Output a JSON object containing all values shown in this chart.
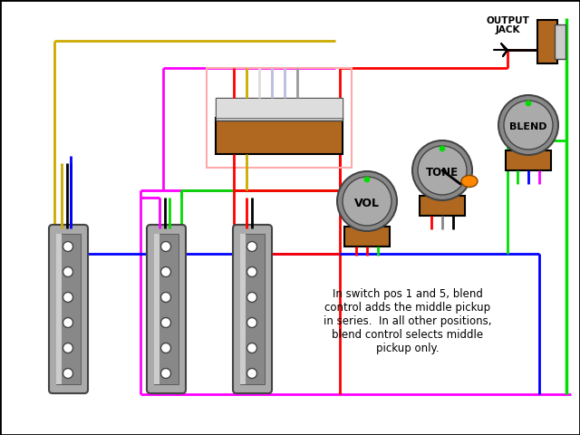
{
  "bg": "#ffffff",
  "black": "#000000",
  "gray": "#888888",
  "dark_gray": "#444444",
  "light_gray": "#cccccc",
  "mid_gray": "#aaaaaa",
  "brown": "#b06820",
  "red": "#ff0000",
  "green": "#00dd00",
  "blue": "#0000ff",
  "yellow": "#ccaa00",
  "magenta": "#ff00ff",
  "orange": "#ff8800",
  "pink_border": "#ffaaaa",
  "white": "#ffffff",
  "vol_label": "VOL",
  "tone_label": "TONE",
  "blend_label": "BLEND",
  "out_label1": "OUTPUT",
  "out_label2": "JACK",
  "desc": "In switch pos 1 and 5, blend\ncontrol adds the middle pickup\nin series.  In all other positions,\nblend control selects middle\npickup only."
}
